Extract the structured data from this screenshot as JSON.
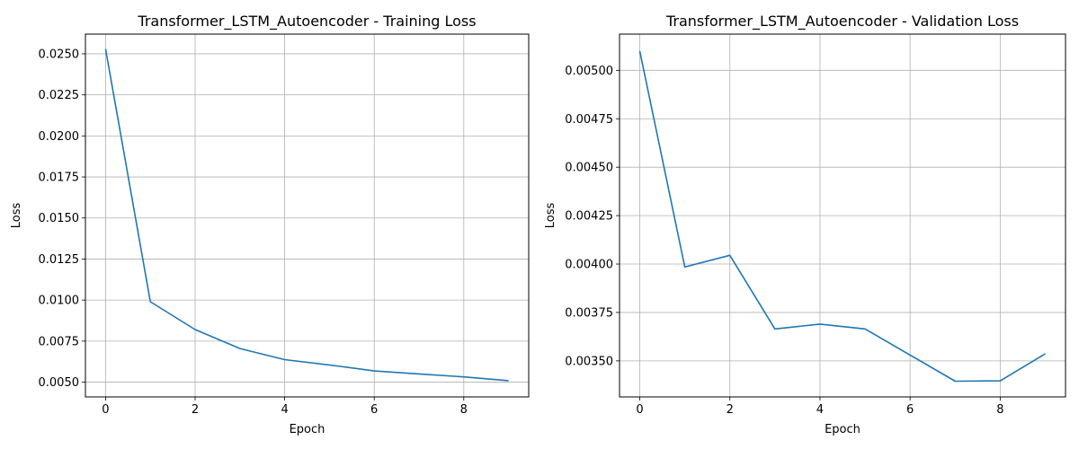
{
  "chart_data": [
    {
      "type": "line",
      "title": "Transformer_LSTM_Autoencoder - Training Loss",
      "xlabel": "Epoch",
      "ylabel": "Loss",
      "xlim": [
        -0.45,
        9.45
      ],
      "ylim": [
        0.0041,
        0.0262
      ],
      "xticks": [
        0,
        2,
        4,
        6,
        8
      ],
      "xtick_labels": [
        "0",
        "2",
        "4",
        "6",
        "8"
      ],
      "yticks": [
        0.005,
        0.0075,
        0.01,
        0.0125,
        0.015,
        0.0175,
        0.02,
        0.0225,
        0.025
      ],
      "ytick_labels": [
        "0.0050",
        "0.0075",
        "0.0100",
        "0.0125",
        "0.0150",
        "0.0175",
        "0.0200",
        "0.0225",
        "0.0250"
      ],
      "grid": true,
      "color": "#1f77b4",
      "series": [
        {
          "x": [
            0,
            1,
            2,
            3,
            4,
            5,
            6,
            7,
            8,
            9
          ],
          "values": [
            0.0253,
            0.0099,
            0.0082,
            0.00705,
            0.00637,
            0.00605,
            0.00568,
            0.0055,
            0.00532,
            0.00509
          ]
        }
      ]
    },
    {
      "type": "line",
      "title": "Transformer_LSTM_Autoencoder - Validation Loss",
      "xlabel": "Epoch",
      "ylabel": "Loss",
      "xlim": [
        -0.45,
        9.45
      ],
      "ylim": [
        0.003314,
        0.005187
      ],
      "xticks": [
        0,
        2,
        4,
        6,
        8
      ],
      "xtick_labels": [
        "0",
        "2",
        "4",
        "6",
        "8"
      ],
      "yticks": [
        0.0035,
        0.00375,
        0.004,
        0.00425,
        0.0045,
        0.00475,
        0.005
      ],
      "ytick_labels": [
        "0.00350",
        "0.00375",
        "0.00400",
        "0.00425",
        "0.00450",
        "0.00475",
        "0.00500"
      ],
      "grid": true,
      "color": "#1f77b4",
      "series": [
        {
          "x": [
            0,
            1,
            2,
            3,
            4,
            5,
            6,
            7,
            8,
            9
          ],
          "values": [
            0.0051,
            0.003985,
            0.004045,
            0.003665,
            0.00369,
            0.003665,
            0.00353,
            0.003395,
            0.003397,
            0.003537
          ]
        }
      ]
    }
  ]
}
